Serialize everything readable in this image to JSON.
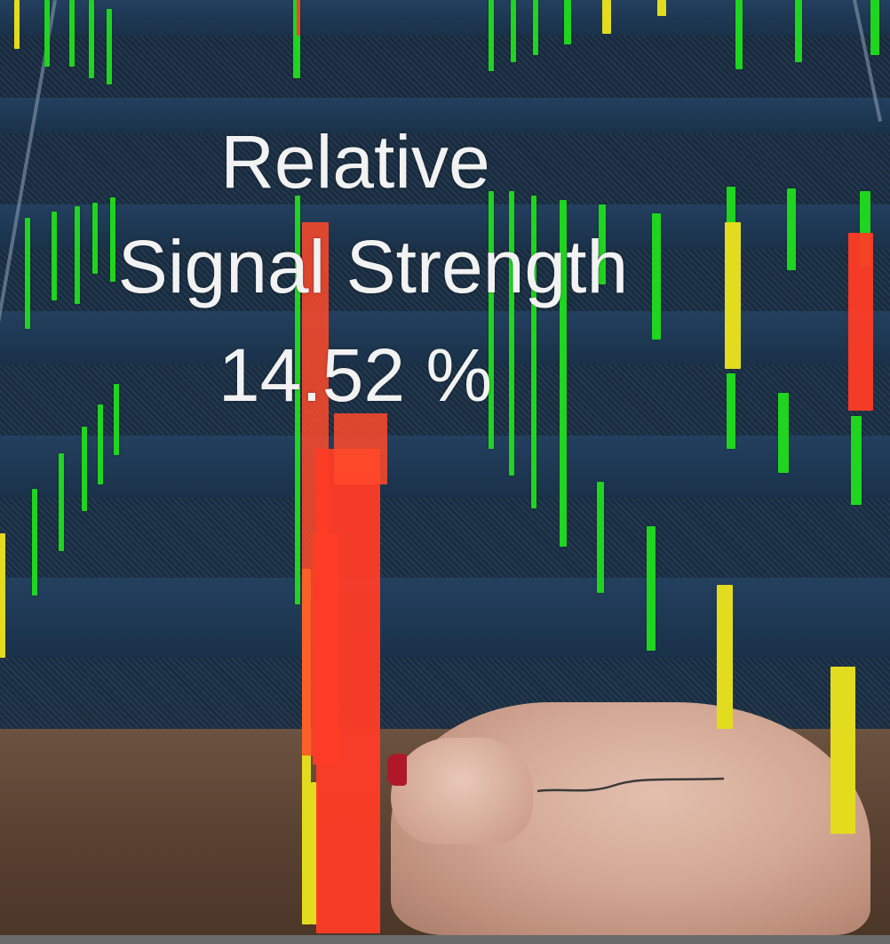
{
  "overlay": {
    "title_line1": "Relative",
    "title_line2": "Signal Strength",
    "value": "14.52 %"
  },
  "colors": {
    "strong": "#1fd51f",
    "medium": "#e3dc1e",
    "weak": "#ff3c26"
  }
}
